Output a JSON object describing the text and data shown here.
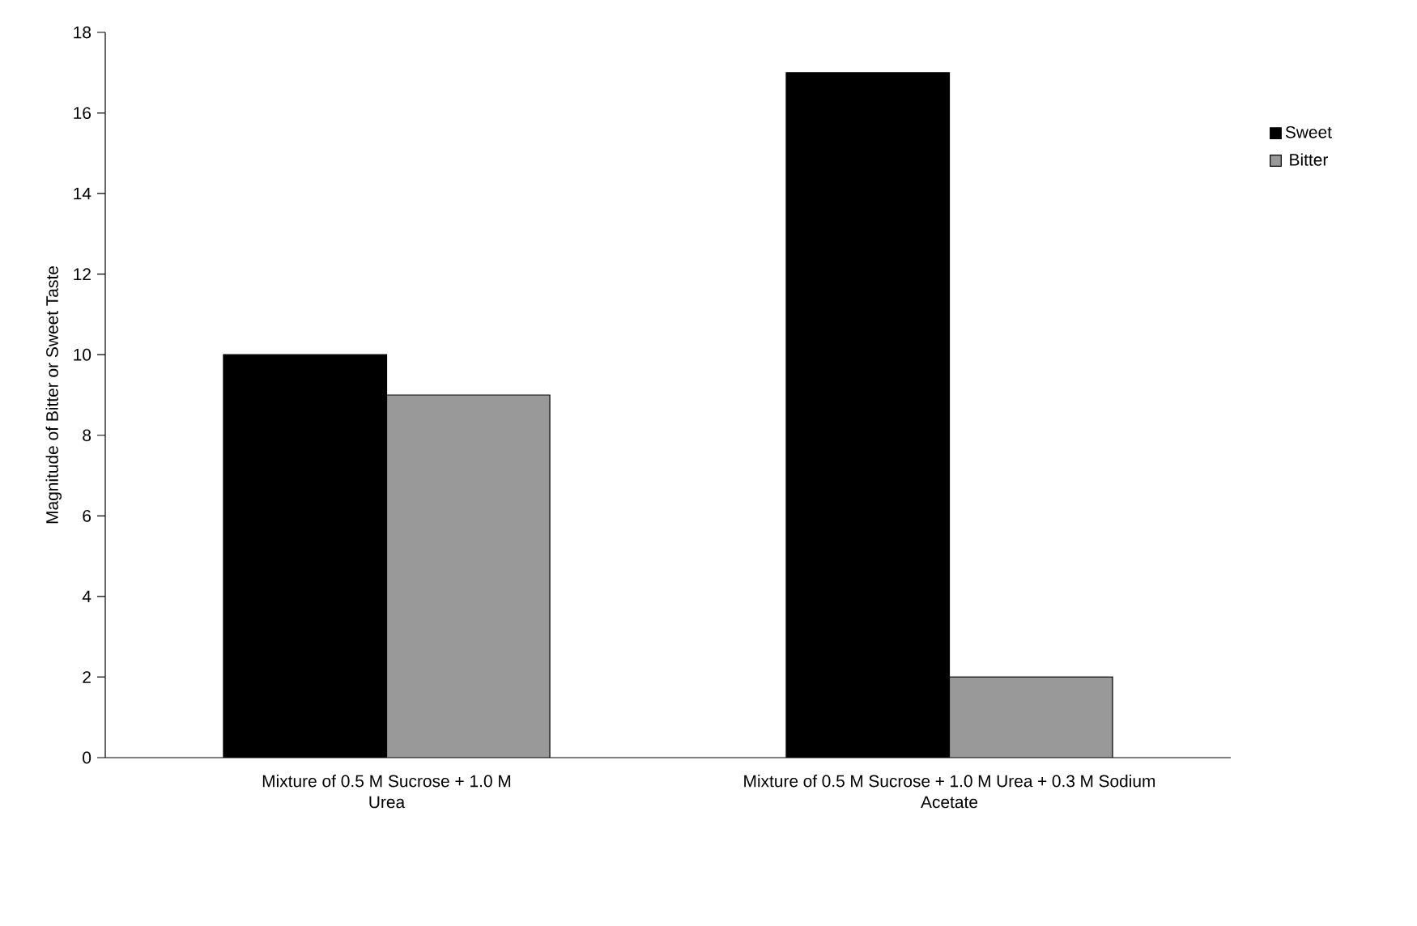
{
  "chart_data": {
    "type": "bar",
    "ylabel": "Magnitude of Bitter or Sweet Taste",
    "categories": [
      "Mixture of 0.5 M Sucrose + 1.0 M Urea",
      "Mixture of 0.5 M Sucrose + 1.0 M Urea + 0.3 M Sodium Acetate"
    ],
    "series": [
      {
        "name": "Sweet",
        "color": "#000000",
        "values": [
          10,
          17
        ]
      },
      {
        "name": "Bitter",
        "color": "#999999",
        "values": [
          9,
          2
        ]
      }
    ],
    "ylim": [
      0,
      18
    ],
    "yticks": [
      0,
      2,
      4,
      6,
      8,
      10,
      12,
      14,
      16,
      18
    ],
    "grid": false,
    "legend": "right"
  }
}
